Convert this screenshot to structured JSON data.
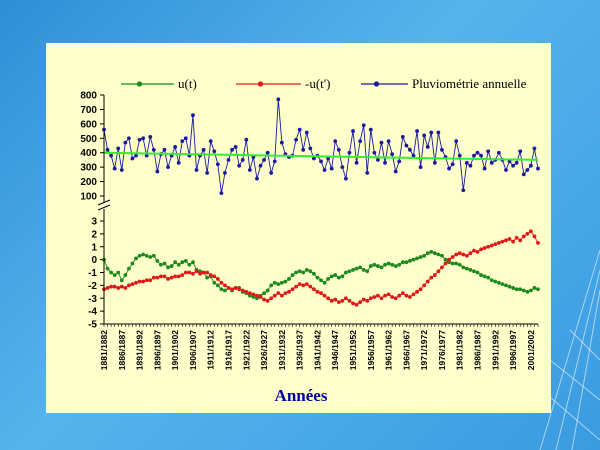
{
  "colors": {
    "background": "#3a9be0",
    "panel": "#ffffcc",
    "u_series": "#1a8a1a",
    "neg_u_series": "#e01818",
    "rain_series": "#1a1aa0",
    "trend": "#33ee33",
    "xlabel": "#0000a0"
  },
  "chart_data": {
    "type": "line",
    "legend": [
      {
        "name": "u(t)",
        "color": "#1a8a1a"
      },
      {
        "name": "-u(t')",
        "color": "#e01818"
      },
      {
        "name": "Pluviométrie annuelle",
        "color": "#1a1aa0"
      }
    ],
    "legend_position": "top",
    "xlabel": "Années",
    "xtick_labels": [
      "1881/1882",
      "1886/1887",
      "1891/1892",
      "1896/1897",
      "1901/1902",
      "1906/1907",
      "1911/1912",
      "1916/1917",
      "1921/1922",
      "1926/1927",
      "1931/1932",
      "1936/1937",
      "1941/1942",
      "1946/1947",
      "1951/1952",
      "1956/1957",
      "1961/1962",
      "1966/1967",
      "1971/1972",
      "1976/1977",
      "1981/1982",
      "1986/1987",
      "1991/1992",
      "1996/1997",
      "2001/2002"
    ],
    "x_start": 1881,
    "x_end": 2003,
    "top_panel": {
      "ylim": [
        100,
        800
      ],
      "yticks": [
        100,
        200,
        300,
        400,
        500,
        600,
        700,
        800
      ],
      "series": [
        {
          "name": "Pluviométrie annuelle",
          "x": [
            1881,
            1882,
            1883,
            1884,
            1885,
            1886,
            1887,
            1888,
            1889,
            1890,
            1891,
            1892,
            1893,
            1894,
            1895,
            1896,
            1897,
            1898,
            1899,
            1900,
            1901,
            1902,
            1903,
            1904,
            1905,
            1906,
            1907,
            1908,
            1909,
            1910,
            1911,
            1912,
            1913,
            1914,
            1915,
            1916,
            1917,
            1918,
            1919,
            1920,
            1921,
            1922,
            1923,
            1924,
            1925,
            1926,
            1927,
            1928,
            1929,
            1930,
            1931,
            1932,
            1933,
            1934,
            1935,
            1936,
            1937,
            1938,
            1939,
            1940,
            1941,
            1942,
            1943,
            1944,
            1945,
            1946,
            1947,
            1948,
            1949,
            1950,
            1951,
            1952,
            1953,
            1954,
            1955,
            1956,
            1957,
            1958,
            1959,
            1960,
            1961,
            1962,
            1963,
            1964,
            1965,
            1966,
            1967,
            1968,
            1969,
            1970,
            1971,
            1972,
            1973,
            1974,
            1975,
            1976,
            1977,
            1978,
            1979,
            1980,
            1981,
            1982,
            1983,
            1984,
            1985,
            1986,
            1987,
            1988,
            1989,
            1990,
            1991,
            1992,
            1993,
            1994,
            1995,
            1996,
            1997,
            1998,
            1999,
            2000,
            2001,
            2002,
            2003
          ],
          "values": [
            560,
            420,
            380,
            290,
            430,
            280,
            470,
            500,
            360,
            380,
            490,
            500,
            380,
            510,
            420,
            270,
            390,
            420,
            300,
            380,
            440,
            330,
            480,
            500,
            380,
            660,
            280,
            380,
            420,
            260,
            480,
            410,
            320,
            120,
            260,
            350,
            420,
            440,
            310,
            350,
            490,
            280,
            370,
            220,
            310,
            350,
            400,
            260,
            340,
            770,
            470,
            390,
            370,
            380,
            490,
            560,
            420,
            540,
            430,
            360,
            380,
            340,
            280,
            360,
            290,
            480,
            420,
            300,
            220,
            400,
            550,
            330,
            480,
            590,
            260,
            560,
            400,
            350,
            470,
            330,
            480,
            390,
            270,
            340,
            510,
            450,
            420,
            380,
            550,
            300,
            520,
            440,
            540,
            330,
            540,
            420,
            370,
            290,
            320,
            480,
            380,
            140,
            330,
            310,
            380,
            400,
            380,
            290,
            410,
            330,
            350,
            400,
            350,
            280,
            340,
            310,
            330,
            410,
            250,
            280,
            310,
            430,
            290
          ]
        },
        {
          "name": "trend",
          "x": [
            1881,
            2003
          ],
          "values": [
            400,
            350
          ]
        }
      ]
    },
    "bottom_panel": {
      "ylim": [
        -5,
        3
      ],
      "yticks": [
        3,
        2,
        1,
        0,
        -1,
        -2,
        -3,
        -4,
        -5
      ],
      "series": [
        {
          "name": "u(t)",
          "x": [
            1881,
            1882,
            1883,
            1884,
            1885,
            1886,
            1887,
            1888,
            1889,
            1890,
            1891,
            1892,
            1893,
            1894,
            1895,
            1896,
            1897,
            1898,
            1899,
            1900,
            1901,
            1902,
            1903,
            1904,
            1905,
            1906,
            1907,
            1908,
            1909,
            1910,
            1911,
            1912,
            1913,
            1914,
            1915,
            1916,
            1917,
            1918,
            1919,
            1920,
            1921,
            1922,
            1923,
            1924,
            1925,
            1926,
            1927,
            1928,
            1929,
            1930,
            1931,
            1932,
            1933,
            1934,
            1935,
            1936,
            1937,
            1938,
            1939,
            1940,
            1941,
            1942,
            1943,
            1944,
            1945,
            1946,
            1947,
            1948,
            1949,
            1950,
            1951,
            1952,
            1953,
            1954,
            1955,
            1956,
            1957,
            1958,
            1959,
            1960,
            1961,
            1962,
            1963,
            1964,
            1965,
            1966,
            1967,
            1968,
            1969,
            1970,
            1971,
            1972,
            1973,
            1974,
            1975,
            1976,
            1977,
            1978,
            1979,
            1980,
            1981,
            1982,
            1983,
            1984,
            1985,
            1986,
            1987,
            1988,
            1989,
            1990,
            1991,
            1992,
            1993,
            1994,
            1995,
            1996,
            1997,
            1998,
            1999,
            2000,
            2001,
            2002,
            2003
          ],
          "values": [
            0.0,
            -0.7,
            -1.0,
            -1.2,
            -1.0,
            -1.6,
            -1.2,
            -0.7,
            -0.3,
            0.1,
            0.3,
            0.4,
            0.3,
            0.2,
            0.3,
            -0.1,
            -0.4,
            -0.3,
            -0.6,
            -0.5,
            -0.2,
            -0.4,
            -0.2,
            -0.1,
            -0.4,
            -0.2,
            -0.8,
            -0.9,
            -1.0,
            -1.4,
            -1.3,
            -1.8,
            -2.0,
            -2.3,
            -2.4,
            -2.2,
            -2.4,
            -2.2,
            -2.2,
            -2.5,
            -2.6,
            -2.8,
            -2.9,
            -3.0,
            -2.8,
            -2.6,
            -2.4,
            -2.0,
            -1.8,
            -1.9,
            -1.8,
            -1.7,
            -1.5,
            -1.2,
            -1.0,
            -0.9,
            -1.0,
            -0.8,
            -0.9,
            -1.1,
            -1.4,
            -1.6,
            -1.8,
            -1.5,
            -1.3,
            -1.2,
            -1.4,
            -1.3,
            -1.0,
            -0.9,
            -0.8,
            -0.7,
            -0.6,
            -0.8,
            -0.9,
            -0.5,
            -0.4,
            -0.5,
            -0.6,
            -0.4,
            -0.3,
            -0.4,
            -0.5,
            -0.4,
            -0.2,
            -0.2,
            -0.1,
            0.0,
            0.1,
            0.2,
            0.3,
            0.5,
            0.6,
            0.5,
            0.4,
            0.3,
            0.0,
            -0.2,
            -0.3,
            -0.3,
            -0.4,
            -0.6,
            -0.7,
            -0.8,
            -0.9,
            -1.0,
            -1.2,
            -1.3,
            -1.4,
            -1.6,
            -1.7,
            -1.8,
            -1.9,
            -2.0,
            -2.1,
            -2.2,
            -2.3,
            -2.3,
            -2.4,
            -2.5,
            -2.4,
            -2.2,
            -2.3
          ]
        },
        {
          "name": "-u(t')",
          "x": [
            1881,
            1882,
            1883,
            1884,
            1885,
            1886,
            1887,
            1888,
            1889,
            1890,
            1891,
            1892,
            1893,
            1894,
            1895,
            1896,
            1897,
            1898,
            1899,
            1900,
            1901,
            1902,
            1903,
            1904,
            1905,
            1906,
            1907,
            1908,
            1909,
            1910,
            1911,
            1912,
            1913,
            1914,
            1915,
            1916,
            1917,
            1918,
            1919,
            1920,
            1921,
            1922,
            1923,
            1924,
            1925,
            1926,
            1927,
            1928,
            1929,
            1930,
            1931,
            1932,
            1933,
            1934,
            1935,
            1936,
            1937,
            1938,
            1939,
            1940,
            1941,
            1942,
            1943,
            1944,
            1945,
            1946,
            1947,
            1948,
            1949,
            1950,
            1951,
            1952,
            1953,
            1954,
            1955,
            1956,
            1957,
            1958,
            1959,
            1960,
            1961,
            1962,
            1963,
            1964,
            1965,
            1966,
            1967,
            1968,
            1969,
            1970,
            1971,
            1972,
            1973,
            1974,
            1975,
            1976,
            1977,
            1978,
            1979,
            1980,
            1981,
            1982,
            1983,
            1984,
            1985,
            1986,
            1987,
            1988,
            1989,
            1990,
            1991,
            1992,
            1993,
            1994,
            1995,
            1996,
            1997,
            1998,
            1999,
            2000,
            2001,
            2002,
            2003
          ],
          "values": [
            -2.3,
            -2.2,
            -2.1,
            -2.1,
            -2.2,
            -2.1,
            -2.2,
            -2.0,
            -1.9,
            -1.8,
            -1.7,
            -1.7,
            -1.6,
            -1.6,
            -1.4,
            -1.4,
            -1.3,
            -1.3,
            -1.5,
            -1.4,
            -1.3,
            -1.3,
            -1.2,
            -1.0,
            -1.0,
            -1.1,
            -0.9,
            -1.1,
            -1.0,
            -1.0,
            -1.2,
            -1.3,
            -1.5,
            -1.8,
            -2.0,
            -2.2,
            -2.3,
            -2.2,
            -2.3,
            -2.4,
            -2.5,
            -2.6,
            -2.7,
            -2.8,
            -2.9,
            -3.1,
            -3.2,
            -3.0,
            -2.8,
            -2.6,
            -2.8,
            -2.6,
            -2.5,
            -2.3,
            -2.1,
            -1.9,
            -2.0,
            -1.9,
            -2.1,
            -2.3,
            -2.5,
            -2.6,
            -2.8,
            -3.0,
            -3.2,
            -3.1,
            -3.3,
            -3.2,
            -3.0,
            -3.2,
            -3.4,
            -3.5,
            -3.3,
            -3.1,
            -3.2,
            -3.0,
            -2.9,
            -2.8,
            -3.0,
            -2.8,
            -2.7,
            -2.9,
            -3.0,
            -2.8,
            -2.6,
            -2.8,
            -2.9,
            -2.7,
            -2.5,
            -2.3,
            -2.0,
            -1.7,
            -1.4,
            -1.2,
            -0.9,
            -0.6,
            -0.3,
            0.0,
            0.2,
            0.4,
            0.5,
            0.4,
            0.3,
            0.5,
            0.7,
            0.6,
            0.8,
            0.9,
            1.0,
            1.1,
            1.2,
            1.3,
            1.4,
            1.5,
            1.6,
            1.4,
            1.7,
            1.5,
            1.8,
            2.0,
            2.2,
            1.8,
            1.3
          ]
        }
      ]
    }
  }
}
